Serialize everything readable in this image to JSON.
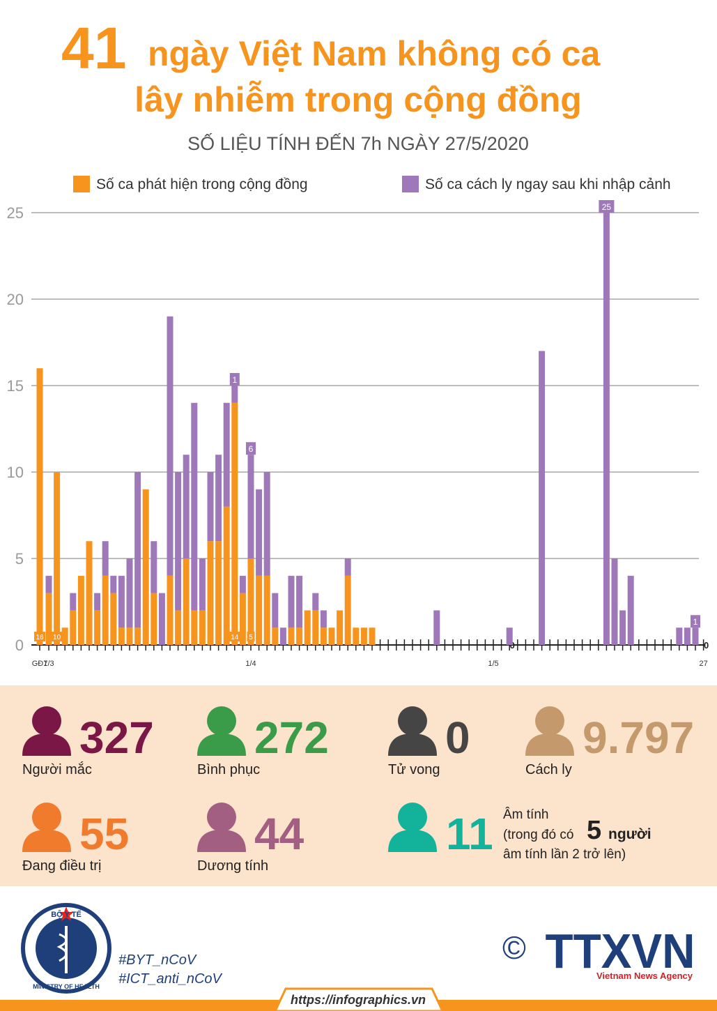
{
  "header": {
    "number": "41",
    "title_line1": "ngày Việt Nam không có ca",
    "title_line2": "lây nhiễm trong cộng đồng",
    "subtitle": "SỐ LIỆU TÍNH ĐẾN 7h NGÀY 27/5/2020"
  },
  "chart_data": {
    "type": "bar",
    "stacked": true,
    "categories": [
      "GĐ1",
      "7/3",
      null,
      null,
      null,
      null,
      null,
      null,
      null,
      null,
      null,
      null,
      null,
      null,
      null,
      null,
      null,
      null,
      null,
      null,
      null,
      null,
      null,
      null,
      null,
      null,
      "1/4",
      null,
      null,
      null,
      null,
      null,
      null,
      null,
      null,
      null,
      null,
      null,
      null,
      null,
      null,
      null,
      null,
      null,
      null,
      null,
      null,
      null,
      null,
      null,
      null,
      null,
      null,
      null,
      null,
      null,
      "1/5",
      null,
      null,
      null,
      null,
      null,
      null,
      null,
      null,
      null,
      null,
      null,
      null,
      null,
      null,
      null,
      null,
      null,
      null,
      null,
      null,
      null,
      null,
      null,
      null,
      null,
      "27"
    ],
    "series": [
      {
        "name": "Số ca phát hiện trong cộng đồng",
        "color": "#f7941d",
        "values": [
          16,
          3,
          10,
          1,
          2,
          4,
          6,
          2,
          4,
          3,
          1,
          1,
          1,
          9,
          3,
          0,
          4,
          2,
          5,
          2,
          2,
          6,
          6,
          8,
          14,
          3,
          5,
          4,
          4,
          1,
          0,
          1,
          1,
          2,
          2,
          1,
          1,
          2,
          4,
          1,
          1,
          1,
          0,
          0,
          0,
          0,
          0,
          0,
          0,
          0,
          0,
          0,
          0,
          0,
          0,
          0,
          0,
          0,
          0,
          0,
          0,
          0,
          0,
          0,
          0,
          0,
          0,
          0,
          0,
          0,
          0,
          0,
          0,
          0,
          0,
          0,
          0,
          0,
          0,
          0,
          0,
          0,
          0
        ],
        "value_labels": [
          "16",
          null,
          "10",
          null,
          null,
          null,
          null,
          null,
          null,
          null,
          null,
          null,
          null,
          null,
          null,
          null,
          null,
          null,
          null,
          null,
          null,
          null,
          null,
          null,
          "14",
          null,
          "5",
          null,
          null,
          null,
          null,
          null,
          null,
          null,
          null,
          null,
          null,
          null,
          null,
          null,
          null,
          null,
          null,
          null,
          null,
          null,
          null,
          null,
          null,
          null,
          null,
          null,
          null,
          null,
          null,
          null,
          null,
          null,
          "0",
          null,
          null,
          null,
          null,
          null,
          null,
          null,
          null,
          null,
          null,
          null,
          null,
          null,
          null,
          null,
          null,
          null,
          null,
          null,
          null,
          null,
          null,
          null,
          "0"
        ]
      },
      {
        "name": "Số ca cách ly ngay sau khi nhập cảnh",
        "color": "#9e78b8",
        "values": [
          0,
          1,
          0,
          0,
          1,
          0,
          0,
          1,
          2,
          1,
          3,
          4,
          9,
          0,
          3,
          3,
          15,
          8,
          6,
          12,
          3,
          4,
          5,
          6,
          1,
          1,
          6,
          5,
          6,
          2,
          1,
          3,
          3,
          0,
          1,
          1,
          0,
          0,
          1,
          0,
          0,
          0,
          0,
          0,
          0,
          0,
          0,
          0,
          0,
          2,
          0,
          0,
          0,
          0,
          0,
          0,
          0,
          0,
          1,
          0,
          0,
          0,
          17,
          0,
          0,
          0,
          0,
          0,
          0,
          0,
          25,
          5,
          2,
          4,
          0,
          0,
          0,
          0,
          0,
          1,
          1,
          1,
          0
        ],
        "value_labels": [
          null,
          null,
          null,
          null,
          null,
          null,
          null,
          null,
          null,
          null,
          null,
          null,
          null,
          null,
          null,
          null,
          null,
          null,
          null,
          null,
          null,
          null,
          null,
          null,
          "1",
          null,
          "6",
          null,
          null,
          null,
          null,
          null,
          null,
          null,
          null,
          null,
          null,
          null,
          null,
          null,
          null,
          null,
          null,
          null,
          null,
          null,
          null,
          null,
          null,
          null,
          null,
          null,
          null,
          null,
          null,
          null,
          null,
          null,
          null,
          null,
          null,
          null,
          null,
          null,
          null,
          null,
          null,
          null,
          null,
          null,
          "25",
          null,
          null,
          null,
          null,
          null,
          null,
          null,
          null,
          null,
          null,
          "1",
          null
        ]
      }
    ],
    "ylim": [
      0,
      25
    ],
    "yticks": [
      0,
      5,
      10,
      15,
      20,
      25
    ],
    "grid": true
  },
  "stats": [
    {
      "value": "327",
      "label": "Người mắc",
      "color": "#7b1746"
    },
    {
      "value": "272",
      "label": "Bình phục",
      "color": "#3a9b48"
    },
    {
      "value": "0",
      "label": "Tử vong",
      "color": "#454545"
    },
    {
      "value": "9.797",
      "label": "Cách ly",
      "color": "#c49a6c"
    },
    {
      "value": "55",
      "label": "Đang điều trị",
      "color": "#f07b2d"
    },
    {
      "value": "44",
      "label": "Dương tính",
      "color": "#a35f82"
    }
  ],
  "negative": {
    "value": "11",
    "label": "Âm tính",
    "color": "#13b39b",
    "note_before": "(trong đó có",
    "note_number": "5",
    "note_after": "người",
    "note_line2": "âm tính lần 2 trở lên)"
  },
  "footer": {
    "logo_top": "BỘ Y TẾ",
    "logo_bottom": "MINISTRY OF HEALTH",
    "hashtags": [
      "#BYT_nCoV",
      "#ICT_anti_nCoV"
    ],
    "copyright": "©",
    "agency": "TTXVN",
    "agency_sub": "Vietnam News Agency",
    "url": "https://infographics.vn"
  }
}
